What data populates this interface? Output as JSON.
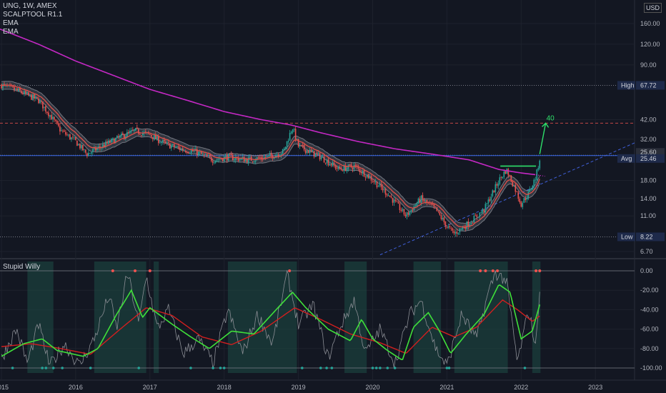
{
  "legend": {
    "symbol_line": "UNG, 1W, AMEX",
    "indicator1": "SCALPTOOL R1.1",
    "indicator2": "EMA",
    "indicator3": "EMA"
  },
  "currency": {
    "line1": "USD"
  },
  "oscillator": {
    "title": "Stupid Willy"
  },
  "annotations": {
    "target_label": "40"
  },
  "colors": {
    "background": "#131722",
    "ema_long": "#c428c4",
    "ema_short": "#e0504a",
    "band": "#6b6f7a",
    "up_candle": "#26a69a",
    "down_candle": "#ef5350",
    "fast_line": "#3fe03a",
    "slow_line": "#d11f1f",
    "raw_line": "#8a8d94",
    "avg_line": "#2962ff",
    "trend_line": "#3f5fd8",
    "highlight_green": "#2ee06a",
    "shade": "#1e4d45"
  },
  "chart_data": [
    {
      "type": "candlestick",
      "title": "UNG, 1W, AMEX",
      "scale": "log",
      "y_ticks": [
        "160.00",
        "120.00",
        "90.00",
        "67.72",
        "42.00",
        "32.00",
        "25.60",
        "18.00",
        "14.00",
        "11.00",
        "8.22",
        "6.70"
      ],
      "y_tick_values": [
        160,
        120,
        90,
        67.72,
        42,
        32,
        25.6,
        18,
        14,
        11,
        8.22,
        6.7
      ],
      "x_ticks": [
        "2015",
        "2016",
        "2017",
        "2018",
        "2019",
        "2020",
        "2021",
        "2022",
        "2023"
      ],
      "ylim": [
        6.0,
        220
      ],
      "price_path": [
        {
          "x": 2015.0,
          "y": 68
        },
        {
          "x": 2015.25,
          "y": 62
        },
        {
          "x": 2015.5,
          "y": 55
        },
        {
          "x": 2015.65,
          "y": 45
        },
        {
          "x": 2015.8,
          "y": 36
        },
        {
          "x": 2016.0,
          "y": 31
        },
        {
          "x": 2016.15,
          "y": 26
        },
        {
          "x": 2016.35,
          "y": 29
        },
        {
          "x": 2016.6,
          "y": 33
        },
        {
          "x": 2016.8,
          "y": 36
        },
        {
          "x": 2017.0,
          "y": 34
        },
        {
          "x": 2017.2,
          "y": 30
        },
        {
          "x": 2017.4,
          "y": 28
        },
        {
          "x": 2017.6,
          "y": 27
        },
        {
          "x": 2017.85,
          "y": 24
        },
        {
          "x": 2018.05,
          "y": 25
        },
        {
          "x": 2018.3,
          "y": 24
        },
        {
          "x": 2018.6,
          "y": 25
        },
        {
          "x": 2018.8,
          "y": 27
        },
        {
          "x": 2018.92,
          "y": 38
        },
        {
          "x": 2019.0,
          "y": 29
        },
        {
          "x": 2019.3,
          "y": 25
        },
        {
          "x": 2019.55,
          "y": 21
        },
        {
          "x": 2019.75,
          "y": 22
        },
        {
          "x": 2019.95,
          "y": 19
        },
        {
          "x": 2020.2,
          "y": 15
        },
        {
          "x": 2020.45,
          "y": 11
        },
        {
          "x": 2020.65,
          "y": 14
        },
        {
          "x": 2020.85,
          "y": 12
        },
        {
          "x": 2021.0,
          "y": 9.5
        },
        {
          "x": 2021.1,
          "y": 8.6
        },
        {
          "x": 2021.3,
          "y": 10
        },
        {
          "x": 2021.5,
          "y": 12
        },
        {
          "x": 2021.7,
          "y": 18
        },
        {
          "x": 2021.8,
          "y": 21
        },
        {
          "x": 2021.92,
          "y": 16
        },
        {
          "x": 2022.0,
          "y": 13
        },
        {
          "x": 2022.1,
          "y": 15
        },
        {
          "x": 2022.2,
          "y": 19
        },
        {
          "x": 2022.26,
          "y": 25.6
        }
      ],
      "ema_long_path": [
        {
          "x": 2014.95,
          "y": 150
        },
        {
          "x": 2015.5,
          "y": 120
        },
        {
          "x": 2016.0,
          "y": 95
        },
        {
          "x": 2016.5,
          "y": 78
        },
        {
          "x": 2017.0,
          "y": 64
        },
        {
          "x": 2017.5,
          "y": 55
        },
        {
          "x": 2018.0,
          "y": 47
        },
        {
          "x": 2018.5,
          "y": 42
        },
        {
          "x": 2018.9,
          "y": 39
        },
        {
          "x": 2019.3,
          "y": 35
        },
        {
          "x": 2019.8,
          "y": 31
        },
        {
          "x": 2020.3,
          "y": 28
        },
        {
          "x": 2020.8,
          "y": 26
        },
        {
          "x": 2021.3,
          "y": 24
        },
        {
          "x": 2021.7,
          "y": 21
        },
        {
          "x": 2022.0,
          "y": 20
        },
        {
          "x": 2022.2,
          "y": 19.5
        }
      ],
      "horizontal_lines": [
        {
          "label": "High",
          "value": 67.72,
          "style": "dotted"
        },
        {
          "label": "Avg",
          "value": 25.46,
          "style": "solid"
        },
        {
          "label": "Low",
          "value": 8.22,
          "style": "dotted"
        },
        {
          "label": "",
          "value": 40,
          "style": "dashed"
        },
        {
          "label": "",
          "value": 25.6,
          "style": "dotted"
        }
      ],
      "price_tags": [
        {
          "label": "High",
          "value": "67.72"
        },
        {
          "label": "",
          "value": "25.60"
        },
        {
          "label": "Avg",
          "value": "25.46"
        },
        {
          "label": "Low",
          "value": "8.22"
        }
      ],
      "neckline": {
        "x1": 2021.72,
        "x2": 2022.2,
        "y": 22
      },
      "projection": {
        "x1": 2022.25,
        "y1": 26,
        "x2": 2022.33,
        "y2": 40,
        "label": "40"
      },
      "trendline": {
        "x1": 2020.1,
        "y1": 6.4,
        "x2": 2022.55,
        "y2": 19.5
      }
    },
    {
      "type": "line",
      "title": "Stupid Willy",
      "y_ticks": [
        "0.00",
        "-20.00",
        "-40.00",
        "-60.00",
        "-80.00",
        "-100.00"
      ],
      "ylim": [
        -104,
        4
      ],
      "fast_path": [
        {
          "x": 2015.0,
          "y": -88
        },
        {
          "x": 2015.3,
          "y": -75
        },
        {
          "x": 2015.55,
          "y": -70
        },
        {
          "x": 2015.75,
          "y": -82
        },
        {
          "x": 2016.1,
          "y": -88
        },
        {
          "x": 2016.3,
          "y": -80
        },
        {
          "x": 2016.55,
          "y": -45
        },
        {
          "x": 2016.75,
          "y": -20
        },
        {
          "x": 2016.9,
          "y": -48
        },
        {
          "x": 2017.0,
          "y": -38
        },
        {
          "x": 2017.3,
          "y": -55
        },
        {
          "x": 2017.55,
          "y": -68
        },
        {
          "x": 2017.8,
          "y": -80
        },
        {
          "x": 2018.1,
          "y": -62
        },
        {
          "x": 2018.4,
          "y": -65
        },
        {
          "x": 2018.7,
          "y": -40
        },
        {
          "x": 2018.92,
          "y": -22
        },
        {
          "x": 2019.1,
          "y": -38
        },
        {
          "x": 2019.4,
          "y": -60
        },
        {
          "x": 2019.7,
          "y": -72
        },
        {
          "x": 2019.85,
          "y": -50
        },
        {
          "x": 2020.0,
          "y": -70
        },
        {
          "x": 2020.2,
          "y": -82
        },
        {
          "x": 2020.4,
          "y": -92
        },
        {
          "x": 2020.55,
          "y": -58
        },
        {
          "x": 2020.75,
          "y": -43
        },
        {
          "x": 2020.9,
          "y": -62
        },
        {
          "x": 2021.05,
          "y": -85
        },
        {
          "x": 2021.25,
          "y": -66
        },
        {
          "x": 2021.5,
          "y": -45
        },
        {
          "x": 2021.7,
          "y": -14
        },
        {
          "x": 2021.85,
          "y": -22
        },
        {
          "x": 2022.0,
          "y": -70
        },
        {
          "x": 2022.15,
          "y": -62
        },
        {
          "x": 2022.26,
          "y": -32
        }
      ],
      "slow_path": [
        {
          "x": 2015.0,
          "y": -78
        },
        {
          "x": 2015.4,
          "y": -75
        },
        {
          "x": 2015.8,
          "y": -80
        },
        {
          "x": 2016.2,
          "y": -86
        },
        {
          "x": 2016.6,
          "y": -60
        },
        {
          "x": 2016.95,
          "y": -38
        },
        {
          "x": 2017.3,
          "y": -46
        },
        {
          "x": 2017.7,
          "y": -68
        },
        {
          "x": 2018.1,
          "y": -76
        },
        {
          "x": 2018.5,
          "y": -62
        },
        {
          "x": 2018.95,
          "y": -38
        },
        {
          "x": 2019.3,
          "y": -50
        },
        {
          "x": 2019.7,
          "y": -65
        },
        {
          "x": 2020.1,
          "y": -74
        },
        {
          "x": 2020.45,
          "y": -85
        },
        {
          "x": 2020.8,
          "y": -58
        },
        {
          "x": 2021.1,
          "y": -68
        },
        {
          "x": 2021.4,
          "y": -58
        },
        {
          "x": 2021.75,
          "y": -30
        },
        {
          "x": 2021.95,
          "y": -40
        },
        {
          "x": 2022.15,
          "y": -52
        },
        {
          "x": 2022.26,
          "y": -46
        }
      ],
      "raw_path": [
        {
          "x": 2015.0,
          "y": -90
        },
        {
          "x": 2015.2,
          "y": -60
        },
        {
          "x": 2015.35,
          "y": -95
        },
        {
          "x": 2015.5,
          "y": -55
        },
        {
          "x": 2015.65,
          "y": -98
        },
        {
          "x": 2015.85,
          "y": -75
        },
        {
          "x": 2016.05,
          "y": -98
        },
        {
          "x": 2016.25,
          "y": -70
        },
        {
          "x": 2016.45,
          "y": -25
        },
        {
          "x": 2016.55,
          "y": -60
        },
        {
          "x": 2016.7,
          "y": -2
        },
        {
          "x": 2016.85,
          "y": -55
        },
        {
          "x": 2016.95,
          "y": -5
        },
        {
          "x": 2017.1,
          "y": -60
        },
        {
          "x": 2017.25,
          "y": -40
        },
        {
          "x": 2017.45,
          "y": -85
        },
        {
          "x": 2017.65,
          "y": -70
        },
        {
          "x": 2017.85,
          "y": -95
        },
        {
          "x": 2018.05,
          "y": -40
        },
        {
          "x": 2018.25,
          "y": -85
        },
        {
          "x": 2018.45,
          "y": -45
        },
        {
          "x": 2018.65,
          "y": -75
        },
        {
          "x": 2018.85,
          "y": -3
        },
        {
          "x": 2019.0,
          "y": -55
        },
        {
          "x": 2019.2,
          "y": -35
        },
        {
          "x": 2019.4,
          "y": -90
        },
        {
          "x": 2019.55,
          "y": -60
        },
        {
          "x": 2019.75,
          "y": -30
        },
        {
          "x": 2019.9,
          "y": -85
        },
        {
          "x": 2020.1,
          "y": -60
        },
        {
          "x": 2020.3,
          "y": -95
        },
        {
          "x": 2020.5,
          "y": -45
        },
        {
          "x": 2020.65,
          "y": -30
        },
        {
          "x": 2020.85,
          "y": -80
        },
        {
          "x": 2021.0,
          "y": -98
        },
        {
          "x": 2021.2,
          "y": -45
        },
        {
          "x": 2021.4,
          "y": -70
        },
        {
          "x": 2021.55,
          "y": -25
        },
        {
          "x": 2021.65,
          "y": -2
        },
        {
          "x": 2021.8,
          "y": -10
        },
        {
          "x": 2021.95,
          "y": -95
        },
        {
          "x": 2022.1,
          "y": -40
        },
        {
          "x": 2022.2,
          "y": -80
        },
        {
          "x": 2022.26,
          "y": -2
        }
      ],
      "shaded_ranges": [
        {
          "x1": 2015.35,
          "x2": 2015.7
        },
        {
          "x1": 2016.25,
          "x2": 2016.95
        },
        {
          "x1": 2017.05,
          "x2": 2017.12
        },
        {
          "x1": 2018.05,
          "x2": 2018.98
        },
        {
          "x1": 2019.62,
          "x2": 2019.92
        },
        {
          "x1": 2020.55,
          "x2": 2020.92
        },
        {
          "x1": 2021.1,
          "x2": 2021.82
        },
        {
          "x1": 2022.15,
          "x2": 2022.26
        }
      ],
      "top_markers": [
        2016.5,
        2016.8,
        2017.0,
        2018.88,
        2021.45,
        2021.52,
        2021.62,
        2021.68,
        2022.2,
        2022.25
      ],
      "bottom_markers": [
        2015.15,
        2015.55,
        2015.6,
        2015.7,
        2015.82,
        2016.2,
        2016.85,
        2017.55,
        2017.85,
        2017.95,
        2018.0,
        2019.05,
        2019.3,
        2019.38,
        2019.45,
        2020.0,
        2020.05,
        2020.1,
        2020.2,
        2020.3,
        2021.0,
        2021.03,
        2022.05
      ]
    }
  ]
}
